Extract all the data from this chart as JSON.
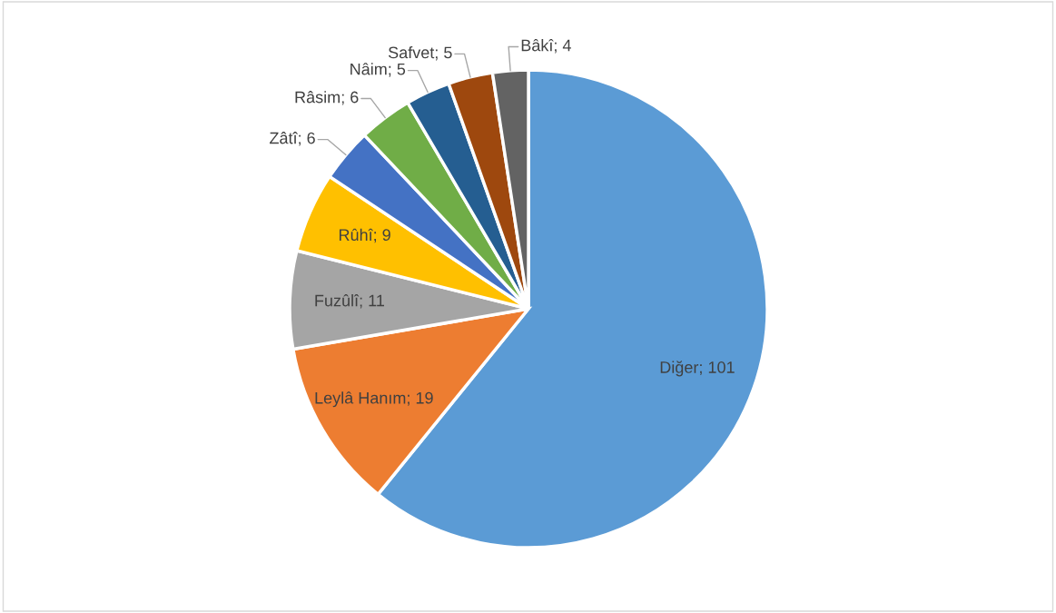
{
  "chart_data": {
    "type": "pie",
    "categories": [
      "Diğer; 101",
      "Leylâ Hanım; 19",
      "Fuzûlî; 11",
      "Rûhî; 9",
      "Zâtî; 6",
      "Râsim; 6",
      "Nâim; 5",
      "Safvet; 5",
      "Bâkî; 4"
    ],
    "values": [
      101,
      19,
      11,
      9,
      6,
      6,
      5,
      5,
      4
    ],
    "colors": [
      "#5b9bd5",
      "#ed7d31",
      "#a5a5a5",
      "#ffc000",
      "#4472c4",
      "#70ad47",
      "#255e91",
      "#9e480e",
      "#636363"
    ],
    "legend": false
  }
}
